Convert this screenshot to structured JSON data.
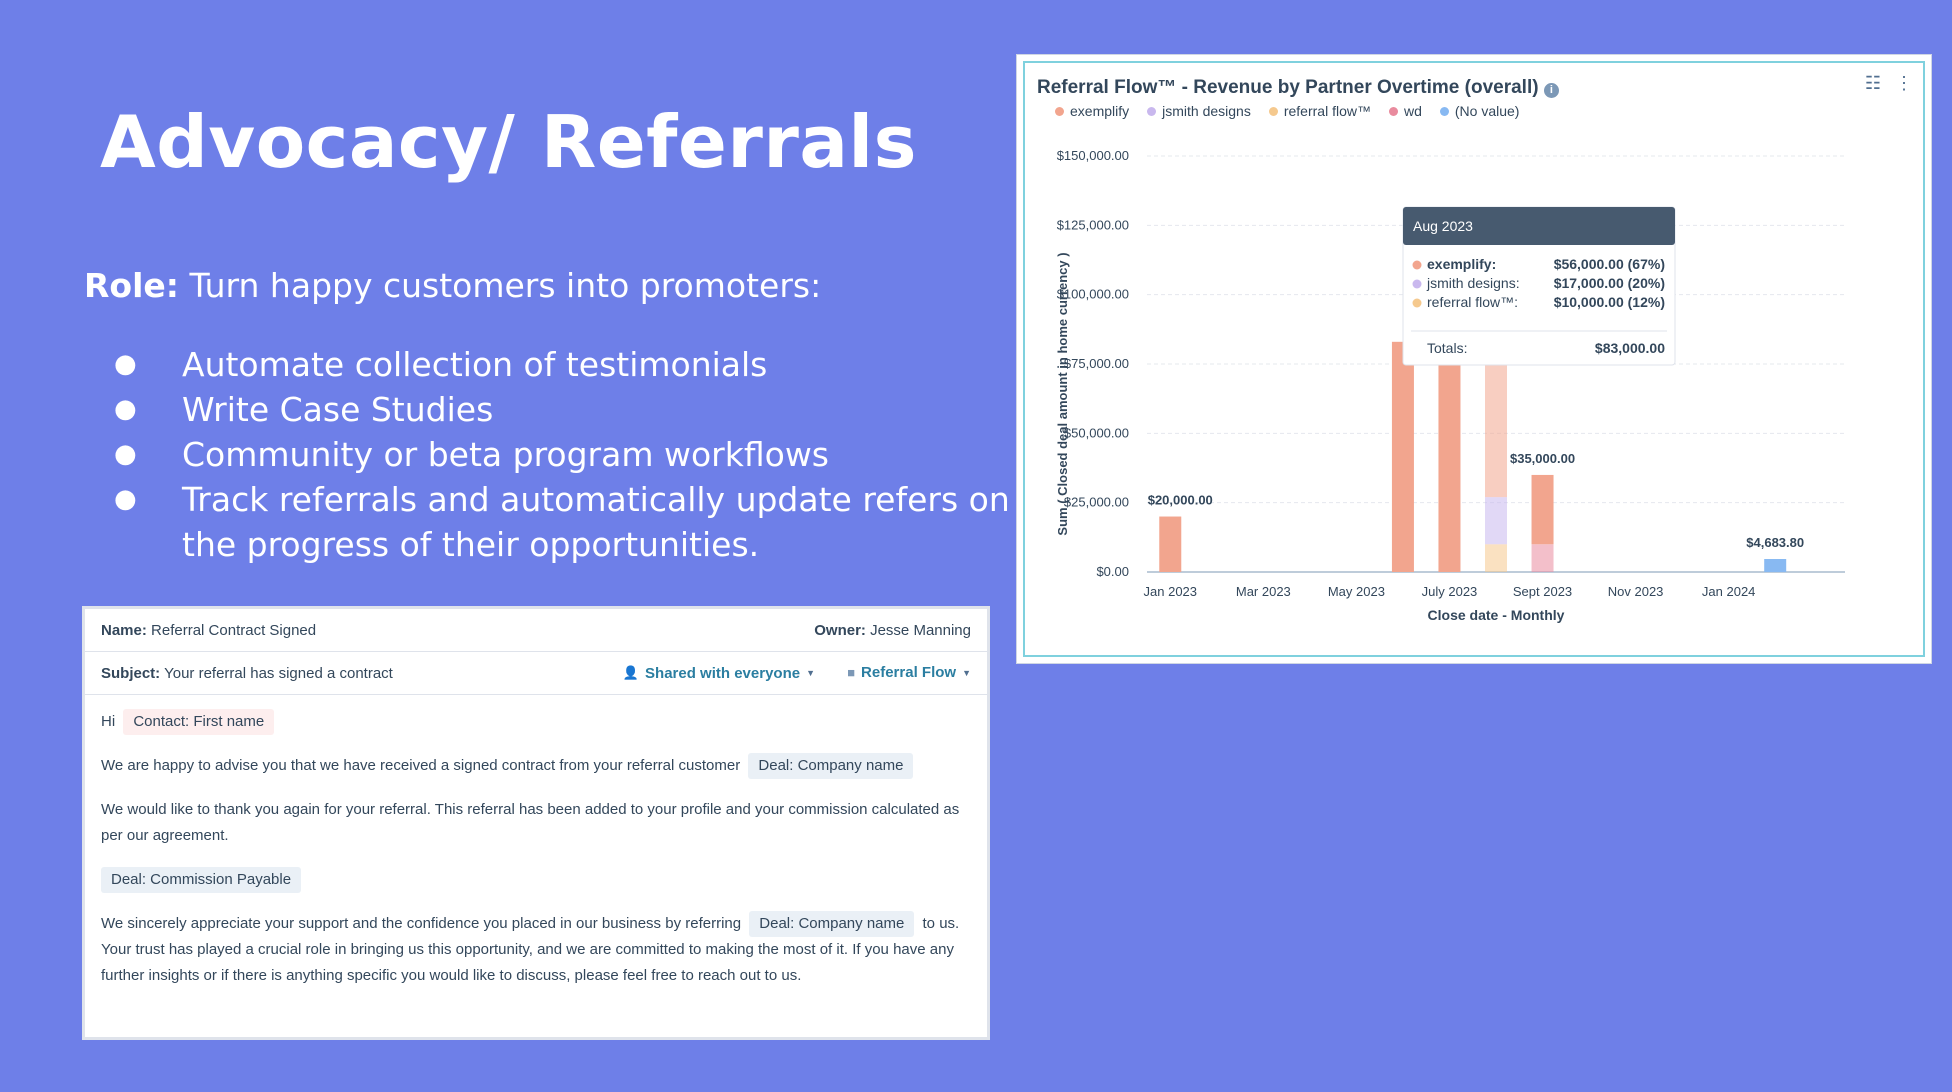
{
  "slide": {
    "title": "Advocacy/ Referrals",
    "role_label": "Role:",
    "role_text": " Turn happy customers into promoters:",
    "bullets": [
      "Automate collection of testimonials",
      "Write Case Studies",
      "Community or beta program workflows",
      "Track referrals and automatically update refers on the progress of their opportunities."
    ]
  },
  "email": {
    "name_label": "Name:",
    "name_value": "Referral Contract Signed",
    "owner_label": "Owner:",
    "owner_value": "Jesse Manning",
    "subject_label": "Subject:",
    "subject_value": "Your referral has signed a contract",
    "shared_label": "Shared with everyone",
    "folder_label": "Referral Flow",
    "greeting": "Hi",
    "token_first_name": "Contact: First name",
    "para1": "We are happy to advise you that we have received a signed contract from your referral customer",
    "token_company": "Deal: Company name",
    "para2": "We would like to thank you again for your referral. This referral has been added to your profile and your commission calculated as per our agreement.",
    "token_commission": "Deal: Commission Payable",
    "para3_start": "We sincerely appreciate your support and the confidence you placed in our business by referring",
    "para3_mid": "to us. Your trust has played a crucial role in bringing us this opportunity, and we are committed to making the most of it. If you have any further insights or if there is anything specific you would like to discuss, please feel free to reach out to us."
  },
  "chart_data": {
    "type": "bar",
    "title": "Referral Flow™ - Revenue by Partner Overtime (overall)",
    "xlabel": "Close date - Monthly",
    "ylabel": "Sum ( Closed deal amount in home currency )",
    "ylim": [
      0,
      150000
    ],
    "yticks": [
      "$0.00",
      "$25,000.00",
      "$50,000.00",
      "$75,000.00",
      "$100,000.00",
      "$125,000.00",
      "$150,000.00"
    ],
    "xticks": [
      "Jan 2023",
      "Mar 2023",
      "May 2023",
      "July 2023",
      "Sept 2023",
      "Nov 2023",
      "Jan 2024"
    ],
    "legend": [
      "exemplify",
      "jsmith designs",
      "referral flow™",
      "wd",
      "(No value)"
    ],
    "colors": {
      "exemplify": "#f2a58e",
      "jsmith designs": "#c9b8ee",
      "referral flow™": "#f5c98e",
      "wd": "#e98b9e",
      "(No value)": "#88b9f2"
    },
    "bars": [
      {
        "month_index": 0,
        "segments": [
          {
            "series": "exemplify",
            "value": 20000
          }
        ],
        "label": "$20,000.00"
      },
      {
        "month_index": 5,
        "segments": [
          {
            "series": "exemplify",
            "value": 83000
          }
        ],
        "label": ""
      },
      {
        "month_index": 6,
        "segments": [
          {
            "series": "exemplify",
            "value": 83000
          }
        ],
        "label": ""
      },
      {
        "month_index": 7,
        "segments": [
          {
            "series": "referral flow™",
            "value": 10000
          },
          {
            "series": "jsmith designs",
            "value": 17000
          },
          {
            "series": "exemplify",
            "value": 56000
          }
        ],
        "label": ""
      },
      {
        "month_index": 8,
        "segments": [
          {
            "series": "wd",
            "value": 10000
          },
          {
            "series": "exemplify",
            "value": 25000
          }
        ],
        "label": "$35,000.00"
      },
      {
        "month_index": 13,
        "segments": [
          {
            "series": "(No value)",
            "value": 4683.8
          }
        ],
        "label": "$4,683.80"
      }
    ],
    "tooltip": {
      "title": "Aug 2023",
      "rows": [
        {
          "series": "exemplify",
          "label": "exemplify:",
          "value": "$56,000.00 (67%)"
        },
        {
          "series": "jsmith designs",
          "label": "jsmith designs:",
          "value": "$17,000.00 (20%)"
        },
        {
          "series": "referral flow™",
          "label": "referral flow™:",
          "value": "$10,000.00 (12%)"
        }
      ],
      "totals_label": "Totals:",
      "totals_value": "$83,000.00"
    }
  }
}
